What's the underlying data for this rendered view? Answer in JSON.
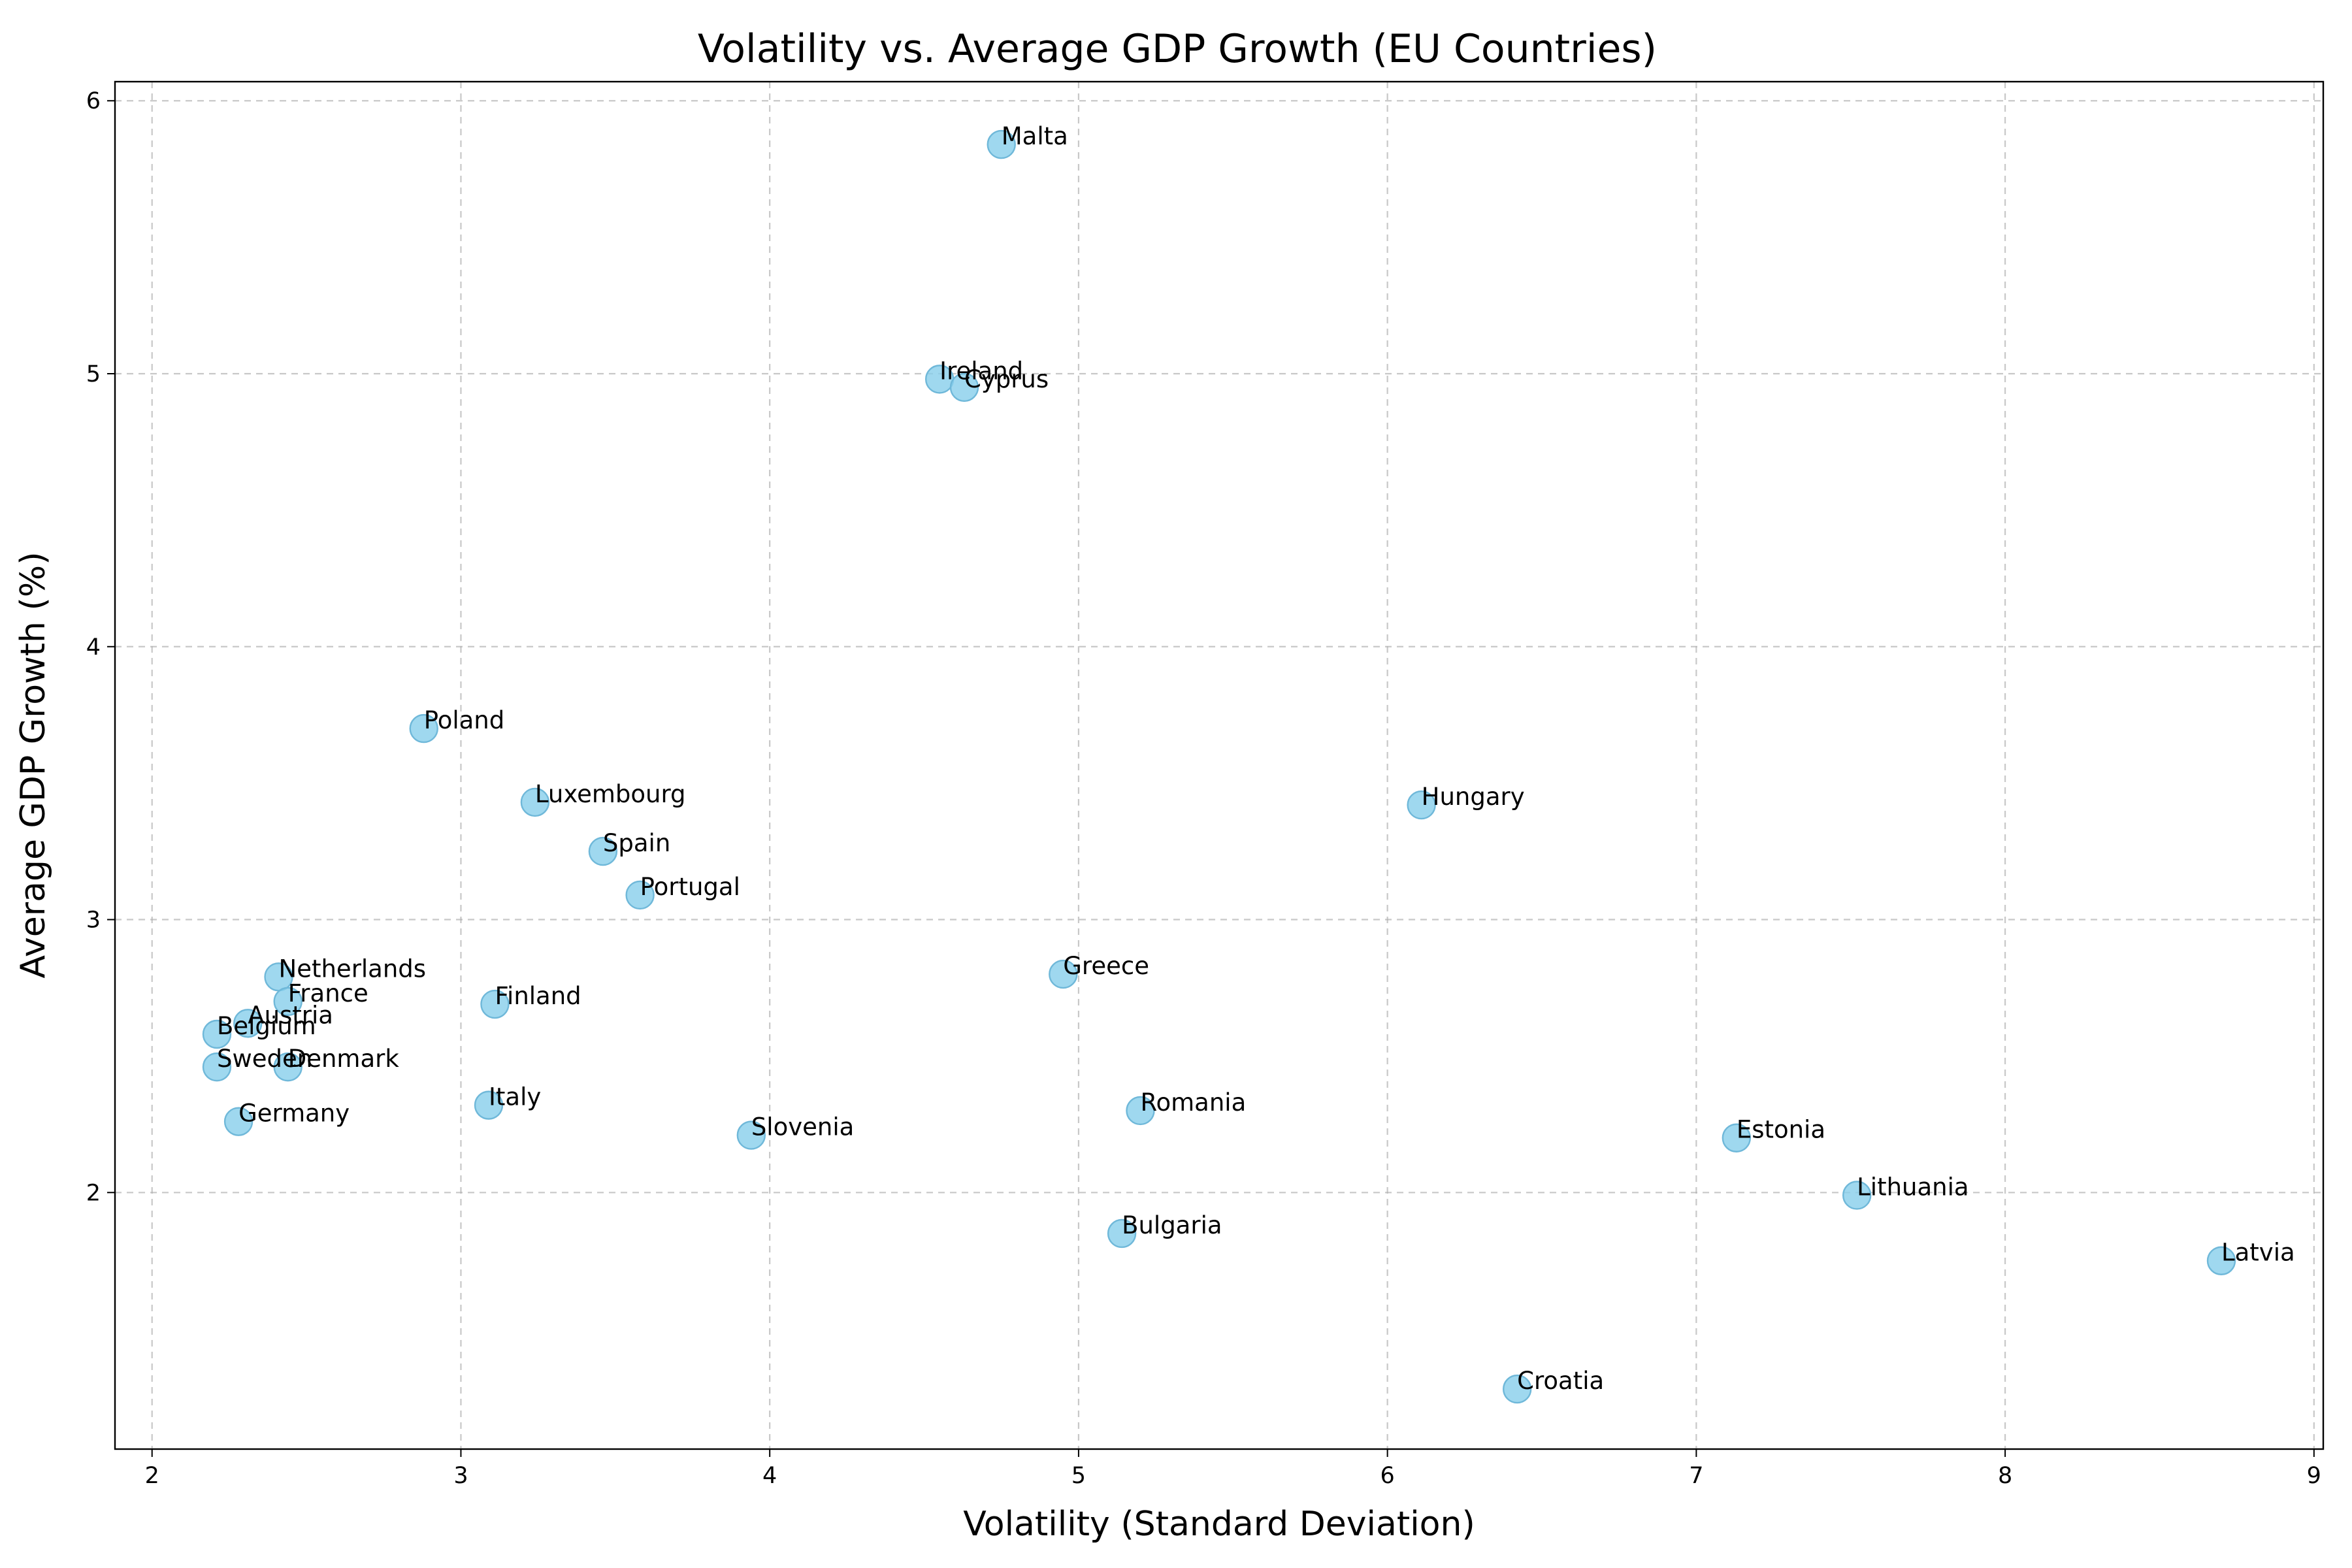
{
  "chart_data": {
    "type": "scatter",
    "title": "Volatility vs. Average GDP Growth (EU Countries)",
    "xlabel": "Volatility (Standard Deviation)",
    "ylabel": "Average GDP Growth (%)",
    "xlim": [
      1.88,
      9.03
    ],
    "ylim": [
      1.06,
      6.07
    ],
    "xticks": [
      2,
      3,
      4,
      5,
      6,
      7,
      8,
      9
    ],
    "yticks": [
      2,
      3,
      4,
      5,
      6
    ],
    "grid": true,
    "marker_color": "#87ceeb",
    "points": [
      {
        "label": "Malta",
        "x": 4.75,
        "y": 5.84
      },
      {
        "label": "Ireland",
        "x": 4.55,
        "y": 4.98
      },
      {
        "label": "Cyprus",
        "x": 4.63,
        "y": 4.95
      },
      {
        "label": "Poland",
        "x": 2.88,
        "y": 3.7
      },
      {
        "label": "Luxembourg",
        "x": 3.24,
        "y": 3.43
      },
      {
        "label": "Hungary",
        "x": 6.11,
        "y": 3.42
      },
      {
        "label": "Spain",
        "x": 3.46,
        "y": 3.25
      },
      {
        "label": "Portugal",
        "x": 3.58,
        "y": 3.09
      },
      {
        "label": "Greece",
        "x": 4.95,
        "y": 2.8
      },
      {
        "label": "Netherlands",
        "x": 2.41,
        "y": 2.79
      },
      {
        "label": "France",
        "x": 2.44,
        "y": 2.7
      },
      {
        "label": "Finland",
        "x": 3.11,
        "y": 2.69
      },
      {
        "label": "Austria",
        "x": 2.31,
        "y": 2.62
      },
      {
        "label": "Belgium",
        "x": 2.21,
        "y": 2.58
      },
      {
        "label": "Sweden",
        "x": 2.21,
        "y": 2.46
      },
      {
        "label": "Denmark",
        "x": 2.44,
        "y": 2.46
      },
      {
        "label": "Italy",
        "x": 3.09,
        "y": 2.32
      },
      {
        "label": "Romania",
        "x": 5.2,
        "y": 2.3
      },
      {
        "label": "Germany",
        "x": 2.28,
        "y": 2.26
      },
      {
        "label": "Slovenia",
        "x": 3.94,
        "y": 2.21
      },
      {
        "label": "Estonia",
        "x": 7.13,
        "y": 2.2
      },
      {
        "label": "Lithuania",
        "x": 7.52,
        "y": 1.99
      },
      {
        "label": "Bulgaria",
        "x": 5.14,
        "y": 1.85
      },
      {
        "label": "Latvia",
        "x": 8.7,
        "y": 1.75
      },
      {
        "label": "Croatia",
        "x": 6.42,
        "y": 1.28
      }
    ]
  }
}
